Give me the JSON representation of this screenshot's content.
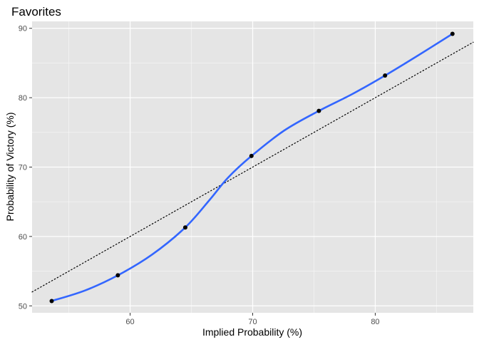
{
  "chart_data": {
    "type": "scatter",
    "title": "Favorites",
    "xlabel": "Implied Probability (%)",
    "ylabel": "Probability of Victory (%)",
    "xlim": [
      52,
      88
    ],
    "ylim": [
      49,
      91
    ],
    "x_ticks": [
      60,
      70,
      80
    ],
    "y_ticks": [
      50,
      60,
      70,
      80,
      90
    ],
    "x_minor": [
      55,
      65,
      75,
      85
    ],
    "y_minor": [
      55,
      65,
      75,
      85
    ],
    "grid": true,
    "points": [
      {
        "x": 53.6,
        "y": 50.7
      },
      {
        "x": 59.0,
        "y": 54.4
      },
      {
        "x": 64.5,
        "y": 61.3
      },
      {
        "x": 69.9,
        "y": 71.6
      },
      {
        "x": 75.4,
        "y": 78.1
      },
      {
        "x": 80.8,
        "y": 83.2
      },
      {
        "x": 86.3,
        "y": 89.2
      }
    ],
    "smooth_line": {
      "color": "#3366ff",
      "points": [
        {
          "x": 53.6,
          "y": 50.7
        },
        {
          "x": 56.3,
          "y": 52.2
        },
        {
          "x": 59.0,
          "y": 54.4
        },
        {
          "x": 61.8,
          "y": 57.4
        },
        {
          "x": 64.5,
          "y": 61.3
        },
        {
          "x": 66.5,
          "y": 65.3
        },
        {
          "x": 68.0,
          "y": 68.5
        },
        {
          "x": 69.9,
          "y": 71.6
        },
        {
          "x": 72.6,
          "y": 75.3
        },
        {
          "x": 75.4,
          "y": 78.1
        },
        {
          "x": 78.1,
          "y": 80.5
        },
        {
          "x": 80.8,
          "y": 83.2
        },
        {
          "x": 83.5,
          "y": 86.1
        },
        {
          "x": 86.3,
          "y": 89.2
        }
      ]
    },
    "reference_line": {
      "style": "dotted",
      "color": "#000000",
      "points": [
        {
          "x": 52,
          "y": 52
        },
        {
          "x": 88,
          "y": 88
        }
      ]
    },
    "colors": {
      "panel": "#e5e5e5",
      "grid_major": "#ffffff",
      "point": "#000000"
    }
  }
}
